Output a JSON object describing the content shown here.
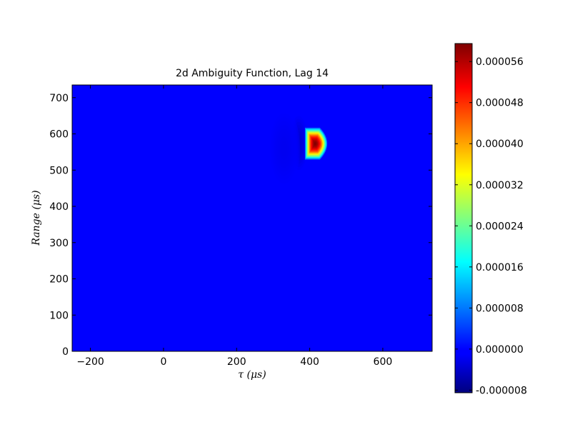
{
  "chart_data": {
    "type": "heatmap",
    "title": "2d Ambiguity Function, Lag 14",
    "xlabel": "τ (μs)",
    "ylabel": "Range (μs)",
    "xlim": [
      -250,
      735
    ],
    "ylim": [
      0,
      735
    ],
    "xticks": [
      -200,
      0,
      200,
      400,
      600
    ],
    "yticks": [
      0,
      100,
      200,
      300,
      400,
      500,
      600,
      700
    ],
    "colorbar": {
      "min": -8.5e-06,
      "max": 5.95e-05,
      "ticks": [
        -8e-06,
        0.0,
        8e-06,
        1.6e-05,
        2.4e-05,
        3.2e-05,
        4e-05,
        4.8e-05,
        5.6e-05
      ],
      "tick_labels": [
        "-0.000008",
        "0.000000",
        "0.000008",
        "0.000016",
        "0.000024",
        "0.000032",
        "0.000040",
        "0.000048",
        "0.000056"
      ],
      "colormap": "jet"
    },
    "background_value": 0.0,
    "peak": {
      "x": 415,
      "y": 573,
      "value": 5.95e-05
    },
    "negative_lobes": [
      {
        "x": 370,
        "y": 575,
        "value": -3e-06
      },
      {
        "x": 330,
        "y": 560,
        "value": -1e-06
      }
    ],
    "grid": false
  }
}
